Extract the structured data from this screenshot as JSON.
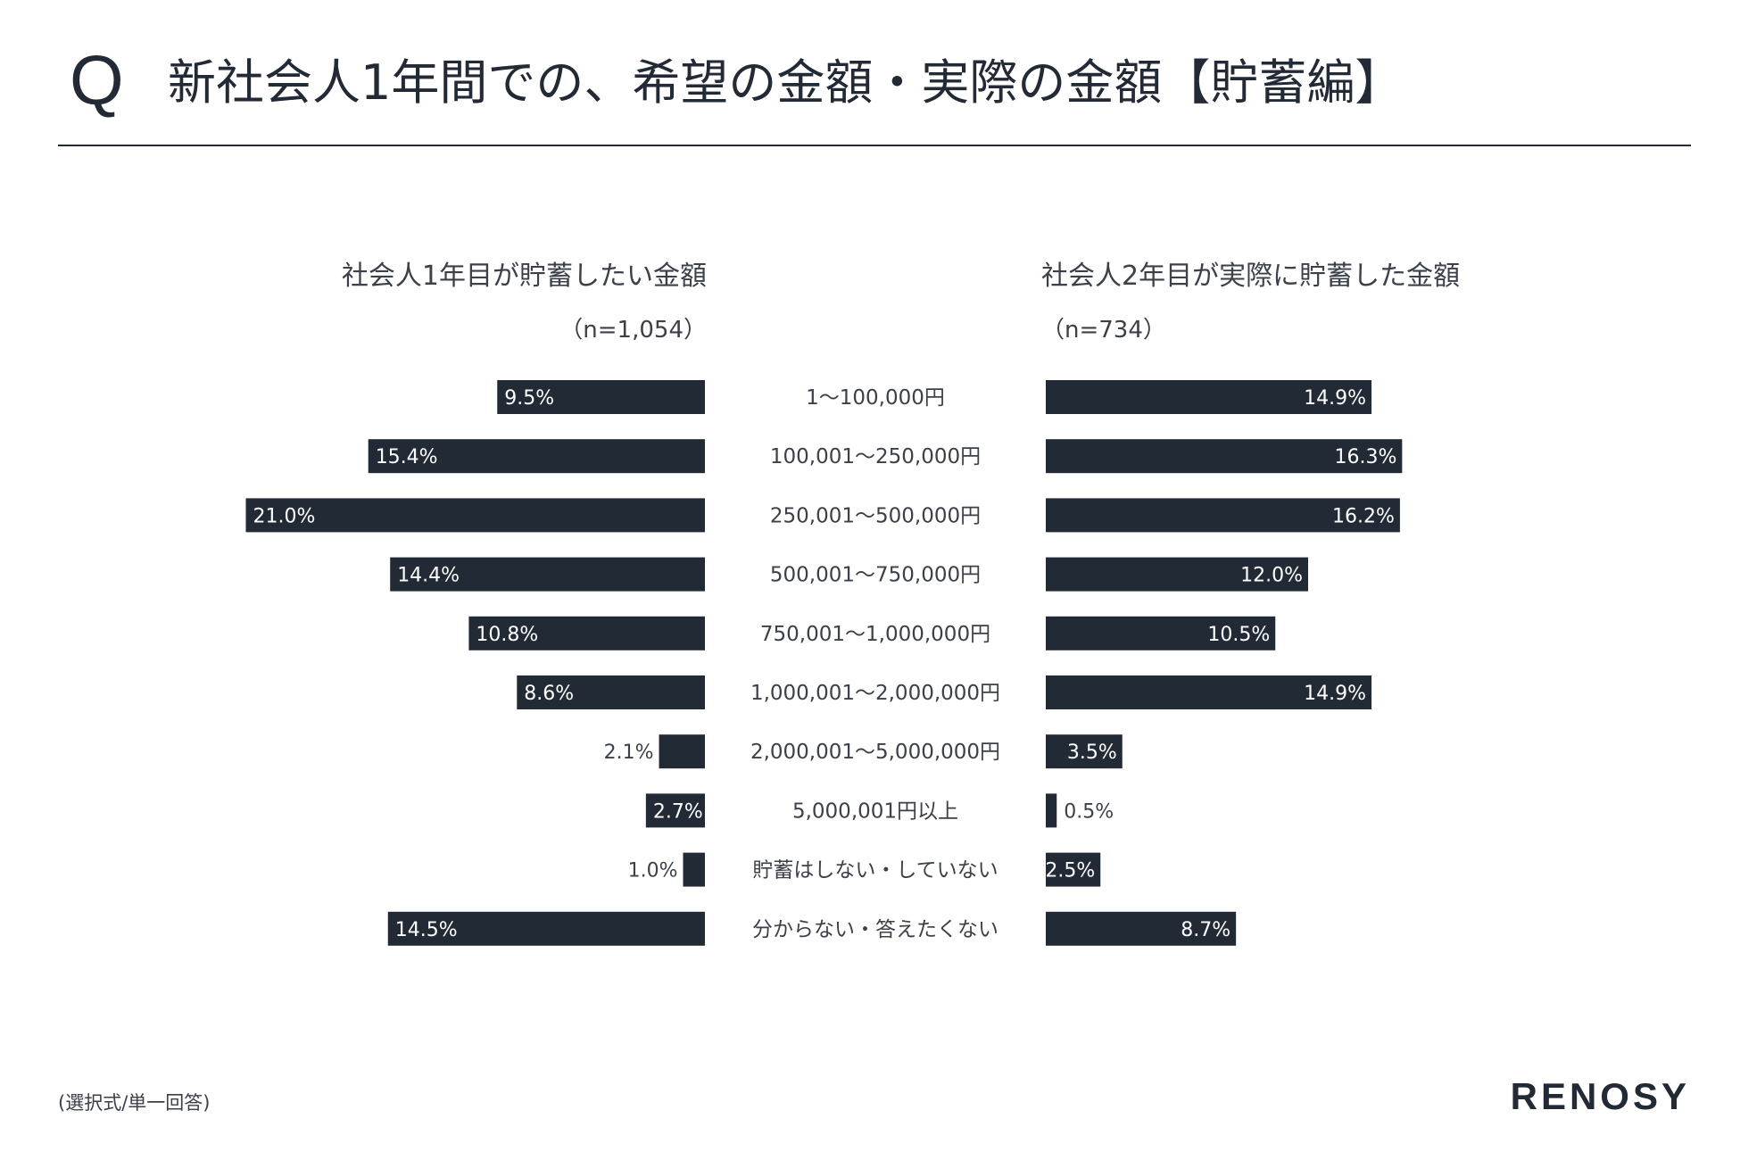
{
  "header": {
    "q_mark": "Q",
    "title": "新社会人1年間での、希望の金額・実際の金額【貯蓄編】"
  },
  "left_panel": {
    "title": "社会人1年目が貯蓄したい金額",
    "n_label": "（n=1,054）"
  },
  "right_panel": {
    "title": "社会人2年目が実際に貯蓄した金額",
    "n_label": "（n=734）"
  },
  "footer": {
    "note": "(選択式/単一回答)",
    "logo": "RENOSY"
  },
  "colors": {
    "bar": "#222a35",
    "bar_text": "#ffffff",
    "text": "#3b4049"
  },
  "chart_data": {
    "type": "bar",
    "orientation": "horizontal-butterfly",
    "unit": "%",
    "categories": [
      "1〜100,000円",
      "100,001〜250,000円",
      "250,001〜500,000円",
      "500,001〜750,000円",
      "750,001〜1,000,000円",
      "1,000,001〜2,000,000円",
      "2,000,001〜5,000,000円",
      "5,000,001円以上",
      "貯蓄はしない・していない",
      "分からない・答えたくない"
    ],
    "series": [
      {
        "name": "社会人1年目が貯蓄したい金額",
        "side": "left",
        "values": [
          9.5,
          15.4,
          21.0,
          14.4,
          10.8,
          8.6,
          2.1,
          2.7,
          1.0,
          14.5
        ],
        "labels": [
          "9.5%",
          "15.4%",
          "21.0%",
          "14.4%",
          "10.8%",
          "8.6%",
          "2.1%",
          "2.7%",
          "1.0%",
          "14.5%"
        ]
      },
      {
        "name": "社会人2年目が実際に貯蓄した金額",
        "side": "right",
        "values": [
          14.9,
          16.3,
          16.2,
          12.0,
          10.5,
          14.9,
          3.5,
          0.5,
          2.5,
          8.7
        ],
        "labels": [
          "14.9%",
          "16.3%",
          "16.2%",
          "12.0%",
          "10.5%",
          "14.9%",
          "3.5%",
          "0.5%",
          "2.5%",
          "8.7%"
        ]
      }
    ],
    "xlim": [
      0,
      21.0
    ],
    "grid": false,
    "legend": "none"
  }
}
